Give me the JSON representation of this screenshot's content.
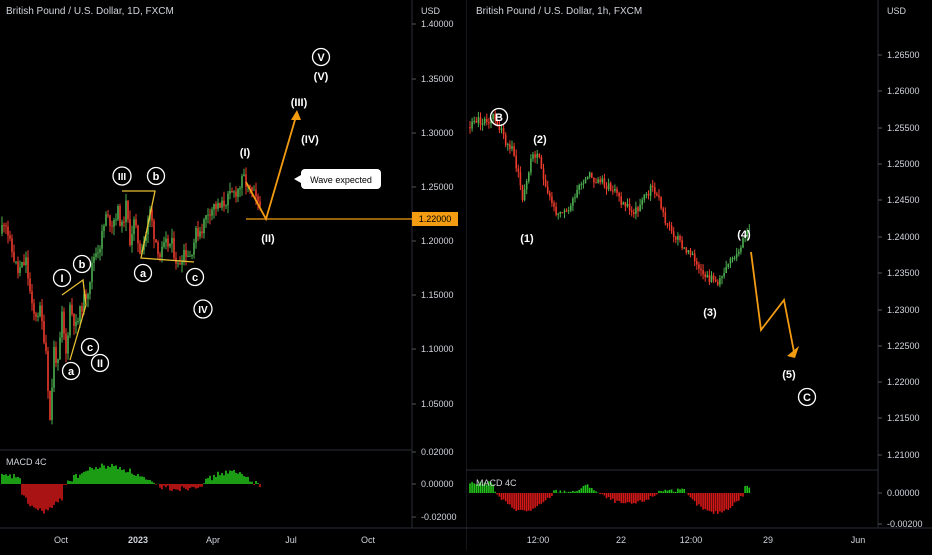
{
  "colors": {
    "bull": "#26a69a",
    "bull_candle": "#4caf50",
    "bear": "#ef3b2c",
    "macd_pos": "#22c31a",
    "macd_neg": "#d41818",
    "projection": "#f39c12",
    "level_badge": "#f39c12",
    "axis_text": "#d1d4dc",
    "background": "#000000"
  },
  "left": {
    "title": "British Pound / U.S. Dollar, 1D, FXCM",
    "currency": "USD",
    "macd_label": "MACD 4C",
    "price_ticks": [
      "1.40000",
      "1.35000",
      "1.30000",
      "1.25000",
      "1.20000",
      "1.15000",
      "1.10000",
      "1.05000"
    ],
    "macd_ticks": [
      "0.02000",
      "0.00000",
      "-0.02000"
    ],
    "time_ticks": [
      "Oct",
      "2023",
      "Apr",
      "Jul",
      "Oct"
    ],
    "level_label": "1.22000",
    "callout": "Wave expected",
    "wave_labels": {
      "I_circ": "I",
      "II_circ": "II",
      "III_circ": "III",
      "IV_circ": "IV",
      "V_circ": "V",
      "a1": "a",
      "b1": "b",
      "c1": "c",
      "a2": "a",
      "b2": "b",
      "c2": "c",
      "p1": "(I)",
      "p2": "(II)",
      "p3": "(III)",
      "p4": "(IV)",
      "p5": "(V)"
    }
  },
  "right": {
    "title": "British Pound / U.S. Dollar, 1h, FXCM",
    "currency": "USD",
    "macd_label": "MACD 4C",
    "price_ticks": [
      "1.26500",
      "1.26000",
      "1.25500",
      "1.25000",
      "1.24500",
      "1.24000",
      "1.23500",
      "1.23000",
      "1.22500",
      "1.22000",
      "1.21500",
      "1.21000"
    ],
    "macd_ticks": [
      "0.00000",
      "-0.00200"
    ],
    "time_ticks": [
      "12:00",
      "22",
      "12:00",
      "29",
      "Jun"
    ],
    "wave_labels": {
      "B": "B",
      "C": "C",
      "w1": "(1)",
      "w2": "(2)",
      "w3": "(3)",
      "w4": "(4)",
      "w5": "(5)"
    }
  },
  "chart_data": [
    {
      "type": "candlestick",
      "title": "British Pound / U.S. Dollar, 1D, FXCM",
      "ylabel": "USD",
      "ylim": [
        1.035,
        1.405
      ],
      "x_ticks": [
        "Oct",
        "2023",
        "Apr",
        "Jul",
        "Oct"
      ],
      "price_path": [
        [
          0,
          1.215
        ],
        [
          5,
          1.23
        ],
        [
          10,
          1.205
        ],
        [
          18,
          1.18
        ],
        [
          26,
          1.19
        ],
        [
          33,
          1.14
        ],
        [
          40,
          1.145
        ],
        [
          46,
          1.11
        ],
        [
          50,
          1.045
        ],
        [
          54,
          1.11
        ],
        [
          58,
          1.095
        ],
        [
          62,
          1.14
        ],
        [
          66,
          1.105
        ],
        [
          70,
          1.15
        ],
        [
          76,
          1.13
        ],
        [
          82,
          1.15
        ],
        [
          88,
          1.165
        ],
        [
          94,
          1.195
        ],
        [
          100,
          1.205
        ],
        [
          106,
          1.23
        ],
        [
          112,
          1.225
        ],
        [
          118,
          1.235
        ],
        [
          122,
          1.22
        ],
        [
          126,
          1.24
        ],
        [
          130,
          1.21
        ],
        [
          134,
          1.225
        ],
        [
          140,
          1.2
        ],
        [
          146,
          1.215
        ],
        [
          150,
          1.235
        ],
        [
          154,
          1.215
        ],
        [
          160,
          1.195
        ],
        [
          166,
          1.205
        ],
        [
          172,
          1.205
        ],
        [
          178,
          1.185
        ],
        [
          184,
          1.2
        ],
        [
          190,
          1.195
        ],
        [
          196,
          1.215
        ],
        [
          202,
          1.22
        ],
        [
          208,
          1.235
        ],
        [
          214,
          1.24
        ],
        [
          220,
          1.238
        ],
        [
          226,
          1.245
        ],
        [
          232,
          1.25
        ],
        [
          238,
          1.255
        ],
        [
          244,
          1.265
        ],
        [
          248,
          1.255
        ],
        [
          254,
          1.25
        ],
        [
          258,
          1.24
        ]
      ],
      "level": 1.22,
      "projection": [
        [
          1.245,
          1.21
        ],
        [
          1.21,
          1.315
        ]
      ],
      "macd_ylim": [
        -0.025,
        0.02
      ],
      "macd_ticks": [
        0.02,
        0.0,
        -0.02
      ]
    },
    {
      "type": "candlestick",
      "title": "British Pound / U.S. Dollar, 1h, FXCM",
      "ylabel": "USD",
      "ylim": [
        1.209,
        1.268
      ],
      "x_ticks": [
        "12:00",
        "22",
        "12:00",
        "29",
        "Jun"
      ],
      "price_path": [
        [
          0,
          1.2525
        ],
        [
          8,
          1.2535
        ],
        [
          16,
          1.253
        ],
        [
          24,
          1.254
        ],
        [
          30,
          1.2525
        ],
        [
          36,
          1.2505
        ],
        [
          42,
          1.2495
        ],
        [
          48,
          1.2465
        ],
        [
          52,
          1.243
        ],
        [
          56,
          1.2455
        ],
        [
          62,
          1.249
        ],
        [
          68,
          1.248
        ],
        [
          74,
          1.245
        ],
        [
          80,
          1.2425
        ],
        [
          86,
          1.2405
        ],
        [
          92,
          1.241
        ],
        [
          98,
          1.242
        ],
        [
          104,
          1.2445
        ],
        [
          110,
          1.2455
        ],
        [
          116,
          1.2465
        ],
        [
          122,
          1.245
        ],
        [
          128,
          1.2455
        ],
        [
          134,
          1.2445
        ],
        [
          140,
          1.244
        ],
        [
          146,
          1.2425
        ],
        [
          152,
          1.242
        ],
        [
          158,
          1.241
        ],
        [
          164,
          1.242
        ],
        [
          170,
          1.2435
        ],
        [
          176,
          1.2445
        ],
        [
          182,
          1.243
        ],
        [
          188,
          1.24
        ],
        [
          194,
          1.2385
        ],
        [
          200,
          1.2375
        ],
        [
          206,
          1.2365
        ],
        [
          212,
          1.2355
        ],
        [
          218,
          1.2345
        ],
        [
          224,
          1.2335
        ],
        [
          230,
          1.2325
        ],
        [
          236,
          1.232
        ],
        [
          242,
          1.2325
        ],
        [
          248,
          1.234
        ],
        [
          254,
          1.2355
        ],
        [
          260,
          1.237
        ],
        [
          266,
          1.2385
        ]
      ],
      "projection": [
        1.2385,
        1.2275,
        1.2315,
        1.2235
      ],
      "macd_ylim": [
        -0.0025,
        0.0005
      ],
      "macd_ticks": [
        0.0,
        -0.002
      ]
    }
  ]
}
